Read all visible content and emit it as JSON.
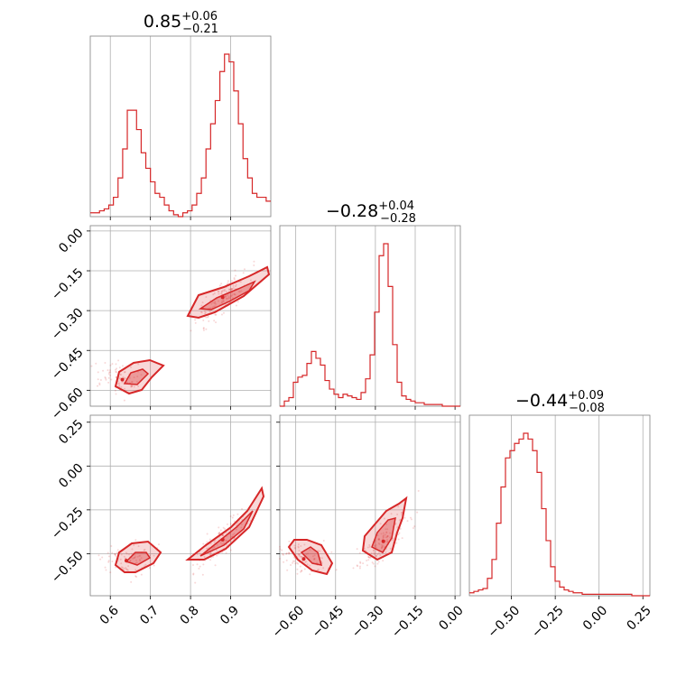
{
  "chart_data": {
    "type": "corner",
    "color": "#d62728",
    "parameters": [
      {
        "median": "0.85",
        "plus": "+0.06",
        "minus": "−0.21",
        "range": [
          0.55,
          1.0
        ],
        "ticks": [
          0.6,
          0.7,
          0.8,
          0.9
        ],
        "tick_labels": [
          "0.6",
          "0.7",
          "0.8",
          "0.9"
        ]
      },
      {
        "median": "−0.28",
        "plus": "+0.04",
        "minus": "−0.28",
        "range": [
          -0.66,
          0.02
        ],
        "ticks": [
          -0.6,
          -0.45,
          -0.3,
          -0.15,
          0.0
        ],
        "tick_labels": [
          "−0.60",
          "−0.45",
          "−0.30",
          "−0.15",
          "0.00"
        ]
      },
      {
        "median": "−0.44",
        "plus": "+0.09",
        "minus": "−0.08",
        "range": [
          -0.74,
          0.29
        ],
        "ticks": [
          -0.5,
          -0.25,
          0.0,
          0.25
        ],
        "tick_labels": [
          "−0.50",
          "−0.25",
          "0.00",
          "0.25"
        ]
      }
    ],
    "histograms": [
      {
        "param": 0,
        "bins": [
          0.55,
          1.0
        ],
        "counts": [
          2,
          2,
          3,
          4,
          6,
          10,
          20,
          35,
          55,
          55,
          45,
          33,
          25,
          18,
          12,
          10,
          6,
          3,
          1,
          0,
          2,
          3,
          6,
          12,
          20,
          35,
          48,
          60,
          75,
          84,
          80,
          65,
          48,
          30,
          20,
          12,
          10,
          10,
          8
        ]
      },
      {
        "param": 1,
        "bins": [
          -0.66,
          0.02
        ],
        "counts": [
          0,
          3,
          5,
          14,
          17,
          18,
          25,
          32,
          28,
          24,
          15,
          10,
          7,
          5,
          7,
          6,
          5,
          4,
          8,
          16,
          30,
          55,
          88,
          95,
          70,
          36,
          14,
          6,
          4,
          3,
          2,
          2,
          1,
          1,
          1,
          1,
          0,
          0,
          0,
          0
        ]
      },
      {
        "param": 2,
        "bins": [
          -0.74,
          0.29
        ],
        "counts": [
          2,
          3,
          4,
          5,
          12,
          25,
          50,
          75,
          95,
          100,
          105,
          108,
          112,
          108,
          100,
          85,
          60,
          38,
          20,
          10,
          6,
          4,
          3,
          2,
          2,
          1,
          1,
          1,
          1,
          1,
          1,
          1,
          1,
          1,
          1,
          1,
          0,
          0,
          0,
          0
        ]
      }
    ],
    "scatter_2d": [
      {
        "x_param": 0,
        "y_param": 1,
        "modes": [
          {
            "x": 0.63,
            "y": -0.56
          },
          {
            "x": 0.88,
            "y": -0.25
          }
        ]
      },
      {
        "x_param": 0,
        "y_param": 2,
        "modes": [
          {
            "x": 0.64,
            "y": -0.54
          },
          {
            "x": 0.88,
            "y": -0.42
          }
        ]
      },
      {
        "x_param": 1,
        "y_param": 2,
        "modes": [
          {
            "x": -0.57,
            "y": -0.53
          },
          {
            "x": -0.27,
            "y": -0.43
          }
        ]
      }
    ]
  }
}
